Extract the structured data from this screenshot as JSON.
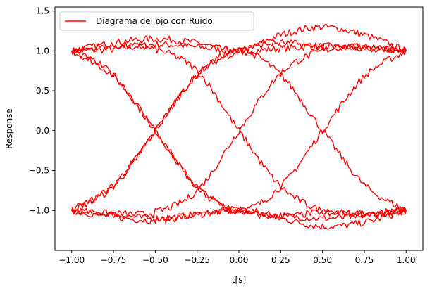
{
  "chart_data": {
    "type": "line",
    "xlabel": "t[s]",
    "ylabel": "Response",
    "xlim": [
      -1.1,
      1.1
    ],
    "ylim": [
      -1.5,
      1.55
    ],
    "x_ticks": [
      -1.0,
      -0.75,
      -0.5,
      -0.25,
      0.0,
      0.25,
      0.5,
      0.75,
      1.0
    ],
    "x_tick_labels": [
      "−1.00",
      "−0.75",
      "−0.50",
      "−0.25",
      "0.00",
      "0.25",
      "0.50",
      "0.75",
      "1.00"
    ],
    "y_ticks": [
      -1.0,
      -0.5,
      0.0,
      0.5,
      1.0,
      1.5
    ],
    "y_tick_labels": [
      "−1.0",
      "−0.5",
      "0.0",
      "0.5",
      "1.0",
      "1.5"
    ],
    "grid": false,
    "legend_position": "top-left",
    "series": [
      {
        "name": "Diagrama del ojo con Ruido",
        "color": "#ff0000",
        "segments": [
          {
            "x": [
              -1.0,
              -0.75,
              -0.5,
              -0.25,
              0.0,
              0.25,
              0.5,
              0.75,
              1.0
            ],
            "y": [
              1.0,
              1.02,
              1.08,
              1.05,
              1.0,
              1.03,
              1.06,
              1.02,
              1.0
            ]
          },
          {
            "x": [
              -1.0,
              -0.75,
              -0.5,
              -0.25,
              0.0,
              0.25,
              0.5,
              0.75,
              1.0
            ],
            "y": [
              1.0,
              1.1,
              1.15,
              1.1,
              1.0,
              1.2,
              1.3,
              1.2,
              1.0
            ]
          },
          {
            "x": [
              -1.0,
              -0.75,
              -0.5,
              -0.25,
              0.0,
              0.25,
              0.5,
              0.75,
              1.0
            ],
            "y": [
              -1.0,
              -1.08,
              -1.12,
              -1.06,
              -1.0,
              -1.1,
              -1.2,
              -1.15,
              -1.0
            ]
          },
          {
            "x": [
              -1.0,
              -0.75,
              -0.5,
              -0.25,
              0.0,
              0.25,
              0.5,
              0.75,
              1.0
            ],
            "y": [
              -1.0,
              -1.05,
              -1.1,
              -1.05,
              -1.0,
              -1.06,
              -1.1,
              -1.06,
              -1.0
            ]
          },
          {
            "x": [
              -1.0,
              -0.75,
              -0.5,
              -0.25,
              0.0,
              0.25,
              0.5,
              0.75,
              1.0
            ],
            "y": [
              1.0,
              0.68,
              0.0,
              -0.7,
              -1.0,
              -0.7,
              0.0,
              0.68,
              1.0
            ]
          },
          {
            "x": [
              -1.0,
              -0.75,
              -0.5,
              -0.25,
              0.0,
              0.25,
              0.5,
              0.75,
              1.0
            ],
            "y": [
              -1.0,
              -0.7,
              0.0,
              0.7,
              1.0,
              0.7,
              0.0,
              -0.68,
              -1.0
            ]
          },
          {
            "x": [
              -1.0,
              -0.75,
              -0.5,
              -0.25,
              0.0,
              0.25,
              0.5,
              0.75,
              1.0
            ],
            "y": [
              1.0,
              1.06,
              1.02,
              0.75,
              0.0,
              -0.7,
              -1.0,
              -1.05,
              -1.0
            ]
          },
          {
            "x": [
              -1.0,
              -0.75,
              -0.5,
              -0.25,
              0.0,
              0.25,
              0.5,
              0.75,
              1.0
            ],
            "y": [
              -1.0,
              -1.04,
              -1.02,
              -0.75,
              0.0,
              0.72,
              1.0,
              1.05,
              1.0
            ]
          },
          {
            "x": [
              -1.0,
              -0.75,
              -0.5,
              -0.25,
              0.0,
              0.25,
              0.5,
              0.75,
              1.0
            ],
            "y": [
              1.0,
              0.7,
              0.0,
              -0.72,
              -1.0,
              -1.08,
              -1.02,
              -1.04,
              -1.0
            ]
          },
          {
            "x": [
              -1.0,
              -0.75,
              -0.5,
              -0.25,
              0.0,
              0.25,
              0.5,
              0.75,
              1.0
            ],
            "y": [
              -1.0,
              -0.68,
              0.0,
              0.7,
              1.0,
              1.1,
              1.05,
              1.05,
              1.0
            ]
          }
        ]
      }
    ]
  }
}
